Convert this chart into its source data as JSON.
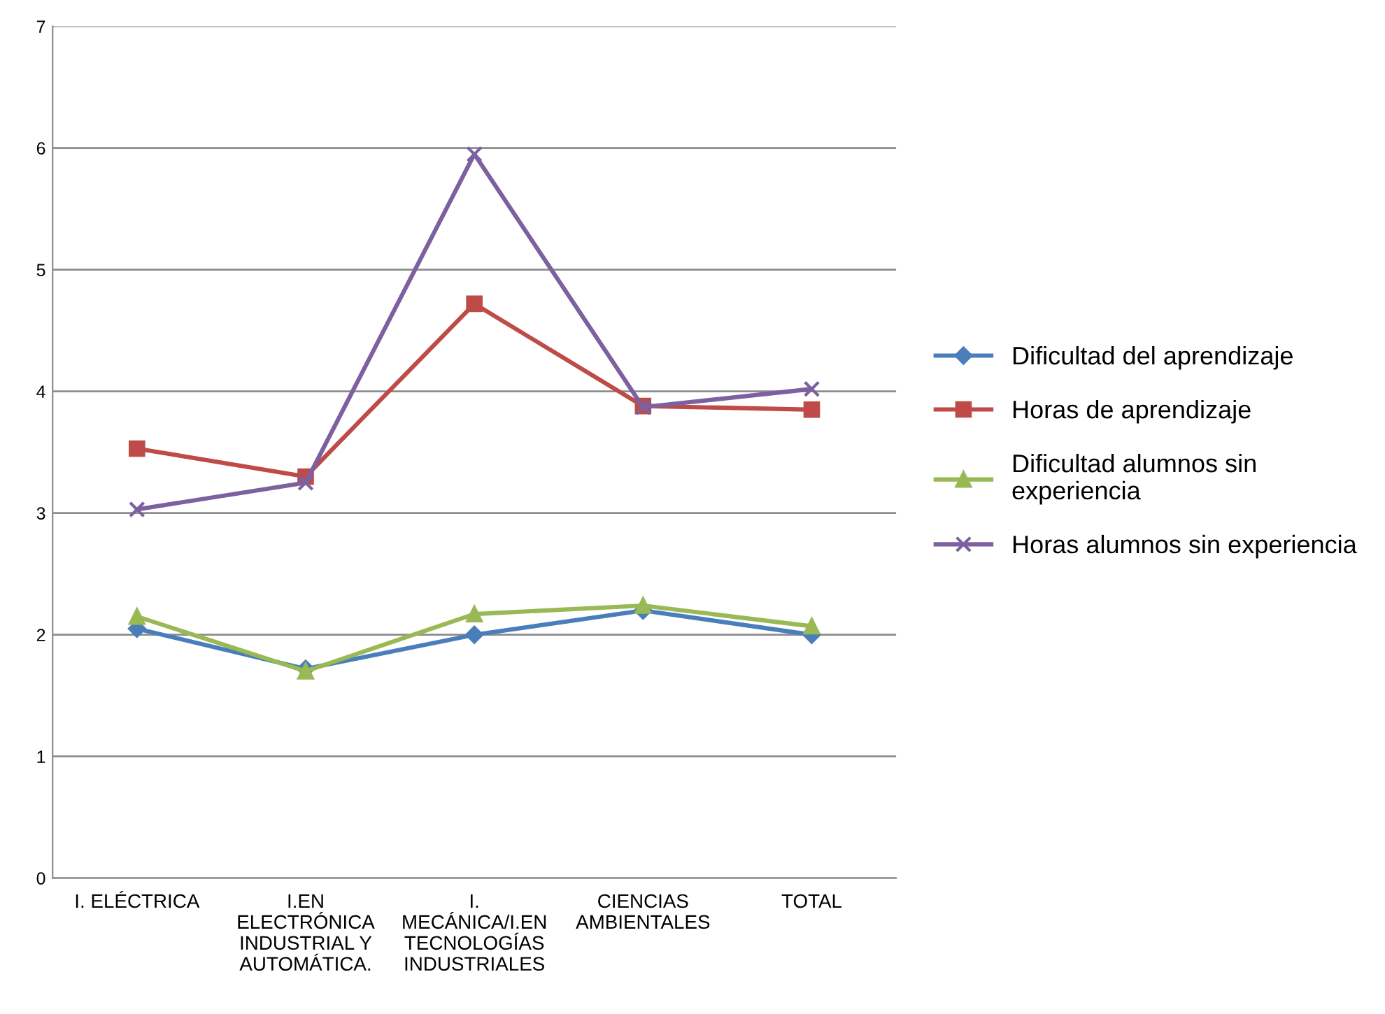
{
  "chart_data": {
    "type": "line",
    "categories": [
      "I. ELÉCTRICA",
      "I.EN\nELECTRÓNICA\nINDUSTRIAL Y\nAUTOMÁTICA.",
      "I.\nMECÁNICA/I.EN\nTECNOLOGÍAS\nINDUSTRIALES",
      "CIENCIAS\nAMBIENTALES",
      "TOTAL"
    ],
    "series": [
      {
        "name": "Dificultad del aprendizaje",
        "color": "#4a7ebb",
        "marker": "diamond",
        "values": [
          2.05,
          1.72,
          2.0,
          2.2,
          2.0
        ]
      },
      {
        "name": "Horas de aprendizaje",
        "color": "#be4b48",
        "marker": "square",
        "values": [
          3.53,
          3.3,
          4.72,
          3.88,
          3.85
        ]
      },
      {
        "name": "Dificultad alumnos sin\nexperiencia",
        "color": "#98b954",
        "marker": "triangle",
        "values": [
          2.15,
          1.7,
          2.17,
          2.24,
          2.07
        ]
      },
      {
        "name": "Horas alumnos sin experiencia",
        "color": "#7d60a0",
        "marker": "cross",
        "values": [
          3.03,
          3.25,
          5.95,
          3.87,
          4.02
        ]
      }
    ],
    "ylim": [
      0,
      7
    ],
    "yticks": [
      0,
      1,
      2,
      3,
      4,
      5,
      6,
      7
    ],
    "grid": "y",
    "legend": "right",
    "line_style": "solid"
  }
}
